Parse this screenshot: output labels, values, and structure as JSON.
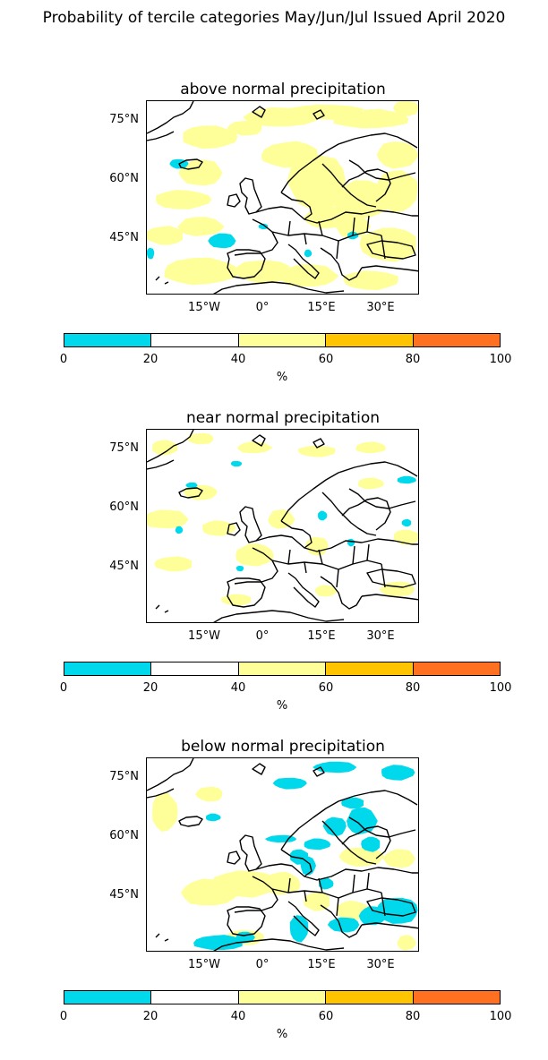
{
  "figure_title": "Probability of tercile categories May/Jun/Jul Issued April 2020",
  "lat_labels": [
    "75°N",
    "60°N",
    "45°N"
  ],
  "lon_labels": [
    "15°W",
    "0°",
    "15°E",
    "30°E"
  ],
  "colorbar": {
    "ticks": [
      "0",
      "20",
      "40",
      "60",
      "80",
      "100"
    ],
    "unit": "%",
    "colors": [
      "#00d8eb",
      "#ffffff",
      "#ffff99",
      "#ffc400",
      "#ff7020"
    ]
  },
  "panels": [
    {
      "title": "above normal precipitation"
    },
    {
      "title": "near normal precipitation"
    },
    {
      "title": "below normal precipitation"
    }
  ],
  "colors": {
    "coast": "#000000",
    "low": "#00d8eb",
    "high": "#ffff99"
  }
}
